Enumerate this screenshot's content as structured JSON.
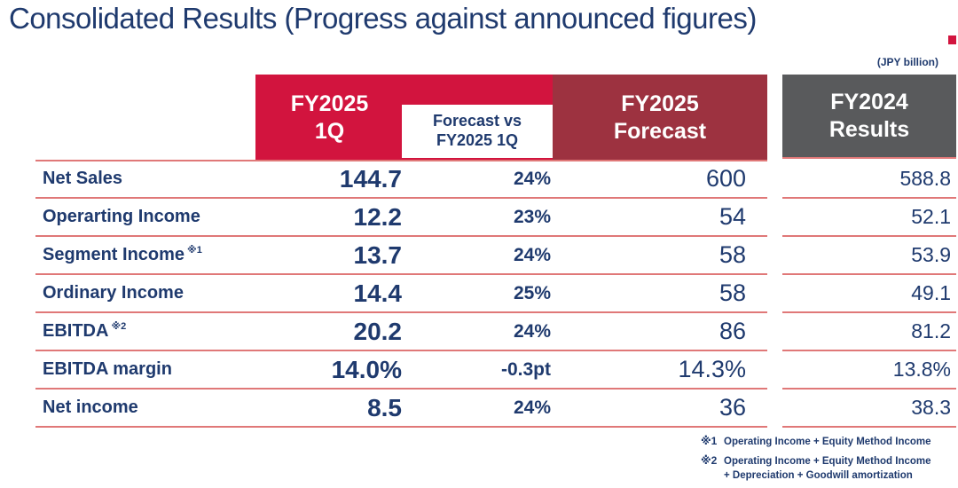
{
  "title": "Consolidated Results (Progress against announced figures)",
  "unit_note": "(JPY billion)",
  "colors": {
    "navy_text": "#1f3a6e",
    "accent_red": "#d2143e",
    "maroon": "#9d3240",
    "gray_header": "#595a5c",
    "row_line_salmon": "#e07878"
  },
  "table": {
    "headers": {
      "col1": {
        "line1": "FY2025",
        "line2": "1Q"
      },
      "col2": {
        "line1": "Forecast vs",
        "line2": "FY2025 1Q"
      },
      "col3": {
        "line1": "FY2025",
        "line2": "Forecast"
      },
      "col4": {
        "line1": "FY2024",
        "line2": "Results"
      }
    },
    "rows": [
      {
        "label": "Net Sales",
        "sup": "",
        "q1": "144.7",
        "vs": "24%",
        "forecast": "600",
        "fy2024": "588.8"
      },
      {
        "label": "Operarting Income",
        "sup": "",
        "q1": "12.2",
        "vs": "23%",
        "forecast": "54",
        "fy2024": "52.1"
      },
      {
        "label": "Segment Income",
        "sup": "※1",
        "q1": "13.7",
        "vs": "24%",
        "forecast": "58",
        "fy2024": "53.9"
      },
      {
        "label": "Ordinary Income",
        "sup": "",
        "q1": "14.4",
        "vs": "25%",
        "forecast": "58",
        "fy2024": "49.1"
      },
      {
        "label": "EBITDA",
        "sup": "※2",
        "q1": "20.2",
        "vs": "24%",
        "forecast": "86",
        "fy2024": "81.2"
      },
      {
        "label": "EBITDA margin",
        "sup": "",
        "q1": "14.0%",
        "vs": "-0.3pt",
        "forecast": "14.3%",
        "fy2024": "13.8%"
      },
      {
        "label": "Net income",
        "sup": "",
        "q1": "8.5",
        "vs": "24%",
        "forecast": "36",
        "fy2024": "38.3"
      }
    ]
  },
  "footnotes": [
    {
      "marker": "※1",
      "text": "Operating Income + Equity Method Income",
      "text2": ""
    },
    {
      "marker": "※2",
      "text": "Operating Income + Equity Method Income",
      "text2": "+ Depreciation + Goodwill amortization"
    }
  ],
  "chart_data": {
    "type": "table",
    "title": "Consolidated Results (Progress against announced figures)",
    "unit": "JPY billion",
    "columns": [
      "",
      "FY2025 1Q",
      "Forecast vs FY2025 1Q",
      "FY2025 Forecast",
      "FY2024 Results"
    ],
    "rows": [
      [
        "Net Sales",
        144.7,
        "24%",
        600,
        588.8
      ],
      [
        "Operarting Income",
        12.2,
        "23%",
        54,
        52.1
      ],
      [
        "Segment Income ※1",
        13.7,
        "24%",
        58,
        53.9
      ],
      [
        "Ordinary Income",
        14.4,
        "25%",
        58,
        49.1
      ],
      [
        "EBITDA ※2",
        20.2,
        "24%",
        86,
        81.2
      ],
      [
        "EBITDA margin",
        "14.0%",
        "-0.3pt",
        "14.3%",
        "13.8%"
      ],
      [
        "Net income",
        8.5,
        "24%",
        36,
        38.3
      ]
    ]
  }
}
